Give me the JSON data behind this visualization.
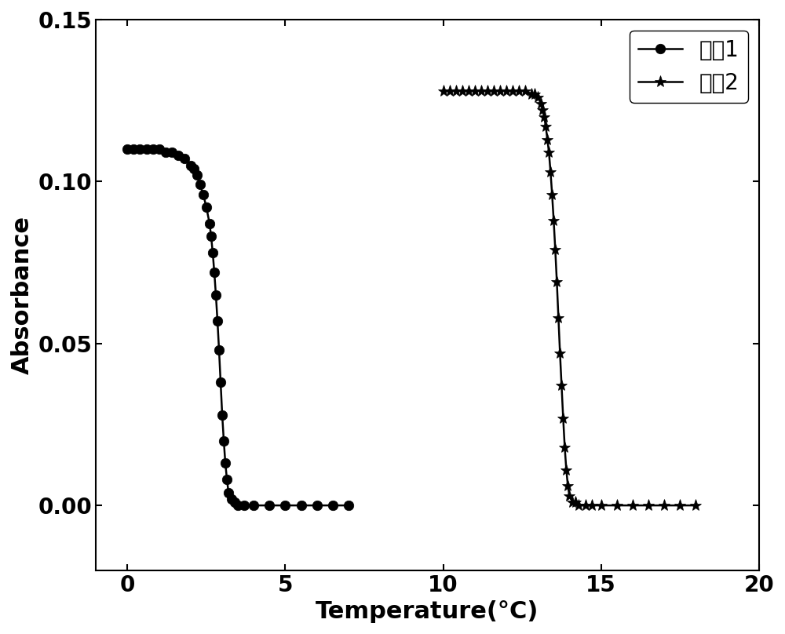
{
  "title": "",
  "xlabel": "Temperature(°C)",
  "ylabel": "Absorbance",
  "xlim": [
    -1,
    20
  ],
  "ylim": [
    -0.02,
    0.15
  ],
  "xticks": [
    0,
    5,
    10,
    15,
    20
  ],
  "yticks": [
    0.0,
    0.05,
    0.1,
    0.15
  ],
  "legend1": "实兣1",
  "legend2": "实兣2",
  "background_color": "#ffffff",
  "line_color": "#000000",
  "series1": {
    "x": [
      0.0,
      0.2,
      0.4,
      0.6,
      0.8,
      1.0,
      1.2,
      1.4,
      1.6,
      1.8,
      2.0,
      2.1,
      2.2,
      2.3,
      2.4,
      2.5,
      2.6,
      2.65,
      2.7,
      2.75,
      2.8,
      2.85,
      2.9,
      2.95,
      3.0,
      3.05,
      3.1,
      3.15,
      3.2,
      3.3,
      3.4,
      3.5,
      3.7,
      4.0,
      4.5,
      5.0,
      5.5,
      6.0,
      6.5,
      7.0
    ],
    "y": [
      0.11,
      0.11,
      0.11,
      0.11,
      0.11,
      0.11,
      0.109,
      0.109,
      0.108,
      0.107,
      0.105,
      0.104,
      0.102,
      0.099,
      0.096,
      0.092,
      0.087,
      0.083,
      0.078,
      0.072,
      0.065,
      0.057,
      0.048,
      0.038,
      0.028,
      0.02,
      0.013,
      0.008,
      0.004,
      0.002,
      0.001,
      0.0,
      0.0,
      0.0,
      0.0,
      0.0,
      0.0,
      0.0,
      0.0,
      0.0
    ]
  },
  "series2": {
    "x": [
      10.0,
      10.2,
      10.4,
      10.6,
      10.8,
      11.0,
      11.2,
      11.4,
      11.6,
      11.8,
      12.0,
      12.2,
      12.4,
      12.6,
      12.8,
      12.9,
      13.0,
      13.1,
      13.15,
      13.2,
      13.25,
      13.3,
      13.35,
      13.4,
      13.45,
      13.5,
      13.55,
      13.6,
      13.65,
      13.7,
      13.75,
      13.8,
      13.85,
      13.9,
      13.95,
      14.0,
      14.1,
      14.2,
      14.3,
      14.5,
      14.7,
      15.0,
      15.5,
      16.0,
      16.5,
      17.0,
      17.5,
      18.0
    ],
    "y": [
      0.128,
      0.128,
      0.128,
      0.128,
      0.128,
      0.128,
      0.128,
      0.128,
      0.128,
      0.128,
      0.128,
      0.128,
      0.128,
      0.128,
      0.127,
      0.127,
      0.126,
      0.124,
      0.122,
      0.12,
      0.117,
      0.113,
      0.109,
      0.103,
      0.096,
      0.088,
      0.079,
      0.069,
      0.058,
      0.047,
      0.037,
      0.027,
      0.018,
      0.011,
      0.006,
      0.003,
      0.001,
      0.001,
      0.0,
      0.0,
      0.0,
      0.0,
      0.0,
      0.0,
      0.0,
      0.0,
      0.0,
      0.0
    ]
  }
}
